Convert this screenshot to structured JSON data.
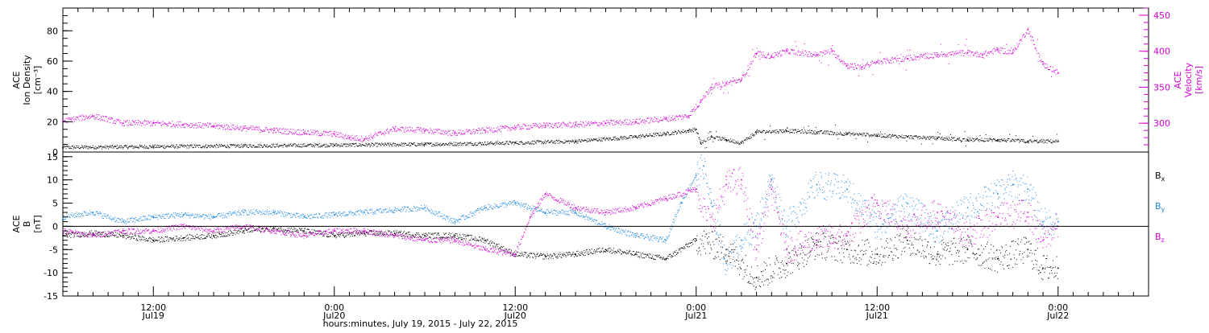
{
  "colors": {
    "black": "#000000",
    "magenta": "#d400d4",
    "blue": "#1e88e5"
  },
  "x_axis": {
    "label": "hours:minutes, July 19, 2015 - July 22, 2015",
    "ticks": [
      {
        "hours": 12,
        "time": "12:00",
        "date": "Jul19"
      },
      {
        "hours": 24,
        "time": "0:00",
        "date": "Jul20"
      },
      {
        "hours": 36,
        "time": "12:00",
        "date": "Jul20"
      },
      {
        "hours": 48,
        "time": "0:00",
        "date": "Jul21"
      },
      {
        "hours": 60,
        "time": "12:00",
        "date": "Jul21"
      },
      {
        "hours": 72,
        "time": "0:00",
        "date": "Jul22"
      }
    ],
    "range_hours": [
      6,
      78
    ]
  },
  "chart_data": [
    {
      "type": "scatter",
      "panel": "plasma",
      "ylabel_left": [
        "ACE",
        "Ion Density",
        "[cm⁻³]"
      ],
      "ylabel_right": [
        "ACE",
        "Velocity",
        "[km/s]"
      ],
      "ylim_left": [
        0,
        95
      ],
      "ylim_right": [
        260,
        460
      ],
      "yticks_left": [
        0,
        20,
        40,
        60,
        80
      ],
      "yticks_right": [
        300,
        350,
        400,
        450
      ],
      "series": [
        {
          "key": "density",
          "axis": "left",
          "color": "black",
          "x": [
            6,
            12,
            18,
            24,
            30,
            36,
            40,
            44,
            46,
            47.5,
            48,
            48.3,
            49,
            50,
            51,
            52,
            54,
            56,
            58,
            60,
            62,
            64,
            66,
            68,
            70,
            72
          ],
          "y": [
            3,
            3.5,
            4,
            4.5,
            5,
            6,
            7,
            10,
            12,
            14,
            15,
            6,
            10,
            8,
            6,
            13,
            14,
            13,
            12,
            11,
            10,
            9,
            8,
            8,
            7,
            7
          ]
        },
        {
          "key": "velocity",
          "axis": "right",
          "color": "magenta",
          "x": [
            6,
            8,
            10,
            12,
            14,
            16,
            18,
            20,
            22,
            24,
            25,
            26,
            28,
            30,
            32,
            34,
            36,
            38,
            40,
            42,
            44,
            46,
            47.5,
            48.3,
            49,
            50,
            51,
            52,
            53,
            54,
            56,
            57,
            58,
            59,
            60,
            62,
            64,
            66,
            67,
            68,
            69,
            70,
            71,
            72
          ],
          "y": [
            303,
            310,
            300,
            300,
            298,
            296,
            293,
            290,
            287,
            285,
            280,
            278,
            292,
            290,
            286,
            290,
            294,
            297,
            298,
            300,
            302,
            306,
            310,
            330,
            350,
            355,
            360,
            397,
            393,
            400,
            395,
            400,
            380,
            378,
            385,
            390,
            395,
            398,
            395,
            402,
            398,
            430,
            382,
            370
          ]
        }
      ]
    },
    {
      "type": "scatter",
      "panel": "magnetic_field",
      "ylabel_left": [
        "ACE",
        "B",
        "[nT]"
      ],
      "ylim": [
        -15,
        16
      ],
      "yticks": [
        -15,
        -10,
        -5,
        0,
        5,
        10,
        15
      ],
      "zero_line": true,
      "series": [
        {
          "key": "bx",
          "color": "black",
          "x": [
            6,
            8,
            10,
            12,
            14,
            16,
            18,
            20,
            22,
            24,
            26,
            28,
            30,
            32,
            34,
            36,
            38,
            40,
            42,
            44,
            46,
            48,
            50,
            52,
            54,
            56,
            58,
            60,
            62,
            64,
            66,
            68,
            70,
            71,
            72
          ],
          "y": [
            -2,
            -1.5,
            -2,
            -3,
            -2.5,
            -2,
            -1,
            -0.5,
            -1,
            -2,
            -1.5,
            -1.5,
            -2,
            -2,
            -3,
            -6,
            -6.5,
            -6,
            -5,
            -6,
            -7,
            -3,
            -5,
            -11,
            -8,
            -4,
            -5,
            -6,
            -3,
            -6,
            -5,
            -7,
            -5,
            -9,
            -9
          ]
        },
        {
          "key": "by",
          "color": "blue",
          "x": [
            6,
            8,
            10,
            12,
            14,
            16,
            18,
            20,
            22,
            24,
            26,
            28,
            30,
            32,
            34,
            36,
            38,
            40,
            42,
            44,
            46,
            47,
            48,
            48.5,
            49,
            50,
            51,
            52,
            53,
            54,
            56,
            58,
            60,
            62,
            64,
            66,
            68,
            69,
            70,
            71,
            72
          ],
          "y": [
            2,
            3,
            1,
            2,
            2.5,
            2,
            3,
            3,
            2,
            2.5,
            3,
            3.5,
            4,
            1,
            4,
            5,
            3,
            3,
            0,
            -2,
            -3,
            5,
            11,
            13,
            5,
            -8,
            -3,
            0,
            10,
            0,
            9,
            8,
            0,
            5,
            -1,
            4,
            7,
            9,
            8,
            1,
            1
          ]
        },
        {
          "key": "bz",
          "color": "magenta",
          "x": [
            6,
            8,
            10,
            12,
            14,
            16,
            18,
            20,
            22,
            24,
            26,
            28,
            30,
            32,
            34,
            36,
            37,
            38,
            40,
            42,
            44,
            46,
            48,
            49,
            50,
            51,
            52,
            53,
            54,
            56,
            58,
            60,
            62,
            64,
            66,
            68,
            70,
            71,
            72
          ],
          "y": [
            -1,
            -2,
            -1,
            -1,
            0,
            -1,
            0,
            -1,
            -2,
            -1,
            -1,
            -2,
            -3,
            -3,
            -5,
            -6,
            2,
            7,
            4,
            3,
            4,
            6,
            8,
            0,
            9,
            10,
            -5,
            8,
            -5,
            -3,
            -2,
            5,
            0,
            3,
            -2,
            2,
            3,
            -3,
            0
          ]
        }
      ],
      "legend": [
        {
          "key": "bx",
          "base": "B",
          "sub": "x",
          "color": "black"
        },
        {
          "key": "by",
          "base": "B",
          "sub": "y",
          "color": "blue"
        },
        {
          "key": "bz",
          "base": "B",
          "sub": "z",
          "color": "magenta"
        }
      ]
    }
  ]
}
